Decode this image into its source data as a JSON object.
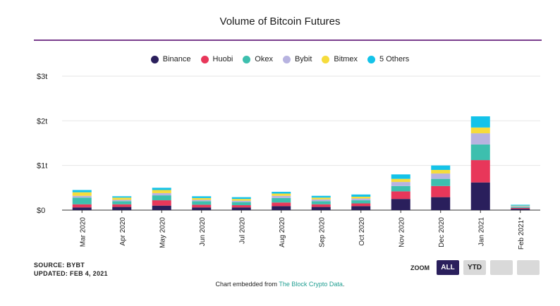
{
  "title": "Volume of Bitcoin Futures",
  "legend": [
    {
      "name": "Binance",
      "color": "#2a1f5c"
    },
    {
      "name": "Huobi",
      "color": "#e8375a"
    },
    {
      "name": "Okex",
      "color": "#3dbfae"
    },
    {
      "name": "Bybit",
      "color": "#b7b3e0"
    },
    {
      "name": "Bitmex",
      "color": "#f6dc3c"
    },
    {
      "name": "5 Others",
      "color": "#14c3e9"
    }
  ],
  "source": {
    "line1": "SOURCE: BYBT",
    "line2": "UPDATED: FEB 4, 2021"
  },
  "zoom": {
    "label": "ZOOM",
    "buttons": [
      "ALL",
      "YTD",
      "",
      ""
    ]
  },
  "embed": {
    "prefix": "Chart embedded from ",
    "link": "The Block Crypto Data",
    "suffix": "."
  },
  "chart_data": {
    "type": "bar",
    "stacked": true,
    "title": "Volume of Bitcoin Futures",
    "categories": [
      "Mar 2020",
      "Apr 2020",
      "May 2020",
      "Jun 2020",
      "Jul 2020",
      "Aug 2020",
      "Sep 2020",
      "Oct 2020",
      "Nov 2020",
      "Dec 2020",
      "Jan 2021",
      "Feb 2021*"
    ],
    "y_ticks": [
      "$0",
      "$1t",
      "$2t",
      "$3t"
    ],
    "ylim": [
      0,
      3
    ],
    "yunit": "trillion USD",
    "grid": true,
    "legend_position": "top",
    "series": [
      {
        "name": "Binance",
        "color": "#2a1f5c",
        "values": [
          0.06,
          0.07,
          0.1,
          0.06,
          0.06,
          0.09,
          0.07,
          0.09,
          0.25,
          0.29,
          0.62,
          0.03
        ]
      },
      {
        "name": "Huobi",
        "color": "#e8375a",
        "values": [
          0.07,
          0.06,
          0.12,
          0.06,
          0.05,
          0.08,
          0.06,
          0.06,
          0.17,
          0.25,
          0.5,
          0.02
        ]
      },
      {
        "name": "Okex",
        "color": "#3dbfae",
        "values": [
          0.15,
          0.07,
          0.11,
          0.08,
          0.07,
          0.1,
          0.07,
          0.07,
          0.12,
          0.16,
          0.35,
          0.02
        ]
      },
      {
        "name": "Bybit",
        "color": "#b7b3e0",
        "values": [
          0.04,
          0.03,
          0.05,
          0.03,
          0.03,
          0.05,
          0.04,
          0.04,
          0.09,
          0.12,
          0.25,
          0.02
        ]
      },
      {
        "name": "Bitmex",
        "color": "#f6dc3c",
        "values": [
          0.08,
          0.05,
          0.07,
          0.04,
          0.04,
          0.05,
          0.04,
          0.04,
          0.07,
          0.08,
          0.13,
          0.01
        ]
      },
      {
        "name": "5 Others",
        "color": "#14c3e9",
        "values": [
          0.05,
          0.03,
          0.05,
          0.04,
          0.04,
          0.04,
          0.04,
          0.05,
          0.1,
          0.1,
          0.25,
          0.02
        ]
      }
    ]
  }
}
